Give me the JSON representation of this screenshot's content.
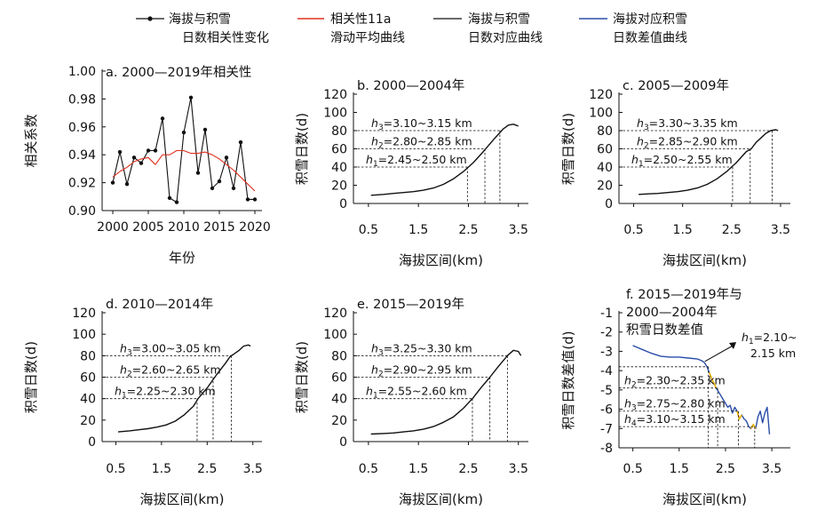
{
  "legend": [
    {
      "line1": "海拔与积雪",
      "line2": "日数相关性变化",
      "color": "#111111",
      "marker": "dot"
    },
    {
      "line1": "相关性11a",
      "line2": "滑动平均曲线",
      "color": "#e0301e",
      "marker": "line"
    },
    {
      "line1": "海拔与积雪",
      "line2": "日数对应曲线",
      "color": "#111111",
      "marker": "line"
    },
    {
      "line1": "海拔对应积雪",
      "line2": "日数差值曲线",
      "color": "#2b4ea8",
      "marker": "line"
    }
  ],
  "colors": {
    "black": "#111111",
    "red": "#e0301e",
    "blue": "#2b4ea8",
    "yellow": "#f0b400"
  },
  "chart_data": [
    {
      "id": "a",
      "type": "line",
      "title": "a. 2000—2019年相关性",
      "xlabel": "年份",
      "ylabel": "相关系数",
      "xlim": [
        1998.5,
        2021
      ],
      "ylim": [
        0.9,
        1.0
      ],
      "xticks": [
        2000,
        2005,
        2010,
        2015,
        2020
      ],
      "yticks": [
        0.9,
        0.92,
        0.94,
        0.96,
        0.98,
        1.0
      ],
      "ytick_labels": [
        "0.90",
        "0.92",
        "0.94",
        "0.96",
        "0.98",
        "1.00"
      ],
      "series": [
        {
          "x": [
            2000,
            2001,
            2002,
            2003,
            2004,
            2005,
            2006,
            2007,
            2008,
            2009,
            2010,
            2011,
            2012,
            2013,
            2014,
            2015,
            2016,
            2017,
            2018,
            2019,
            2020
          ],
          "y": [
            0.92,
            0.942,
            0.919,
            0.938,
            0.934,
            0.943,
            0.943,
            0.966,
            0.909,
            0.906,
            0.956,
            0.981,
            0.927,
            0.958,
            0.916,
            0.921,
            0.938,
            0.916,
            0.949,
            0.908,
            0.908
          ],
          "color": "#111111",
          "marker": true
        },
        {
          "x": [
            2000,
            2001,
            2002,
            2003,
            2004,
            2005,
            2006,
            2007,
            2008,
            2009,
            2010,
            2011,
            2012,
            2013,
            2014,
            2015,
            2016,
            2017,
            2018,
            2019,
            2020
          ],
          "y": [
            0.924,
            0.928,
            0.931,
            0.935,
            0.937,
            0.938,
            0.933,
            0.94,
            0.94,
            0.943,
            0.943,
            0.941,
            0.941,
            0.942,
            0.94,
            0.937,
            0.933,
            0.929,
            0.924,
            0.919,
            0.914
          ],
          "color": "#e0301e",
          "marker": false
        }
      ]
    },
    {
      "id": "b",
      "type": "line",
      "title": "b. 2000—2004年",
      "xlabel": "海拔区间(km)",
      "ylabel": "积雪日数(d)",
      "xlim": [
        0.2,
        3.7
      ],
      "ylim": [
        0,
        120
      ],
      "xticks": [
        0.5,
        1.5,
        2.5,
        3.5
      ],
      "xtick_labels": [
        "0.5",
        "1.5",
        "2.5",
        "3.5"
      ],
      "yticks": [
        0,
        20,
        40,
        60,
        80,
        100,
        120
      ],
      "series": [
        {
          "x": [
            0.55,
            0.8,
            1.0,
            1.2,
            1.4,
            1.6,
            1.8,
            2.0,
            2.2,
            2.4,
            2.5,
            2.6,
            2.8,
            3.0,
            3.1,
            3.2,
            3.3,
            3.4,
            3.5
          ],
          "y": [
            9,
            10,
            11,
            12,
            13,
            14.5,
            17,
            21,
            27,
            35,
            40,
            45,
            57,
            70,
            76,
            82,
            86,
            87,
            85
          ],
          "color": "#111111"
        }
      ],
      "annotations": [
        {
          "sub": "3",
          "text": "=3.10~3.15 km",
          "y": 80,
          "x": 3.13
        },
        {
          "sub": "2",
          "text": "=2.80~2.85 km",
          "y": 60,
          "x": 2.83
        },
        {
          "sub": "1",
          "text": "=2.45~2.50 km",
          "y": 40,
          "x": 2.48
        }
      ]
    },
    {
      "id": "c",
      "type": "line",
      "title": "c. 2005—2009年",
      "xlabel": "海拔区间(km)",
      "ylabel": "积雪日数(d)",
      "xlim": [
        0.2,
        3.7
      ],
      "ylim": [
        0,
        120
      ],
      "xticks": [
        0.5,
        1.5,
        2.5,
        3.5
      ],
      "xtick_labels": [
        "0.5",
        "1.5",
        "2.5",
        "3.5"
      ],
      "yticks": [
        0,
        20,
        40,
        60,
        80,
        100,
        120
      ],
      "series": [
        {
          "x": [
            0.6,
            0.8,
            1.0,
            1.2,
            1.4,
            1.6,
            1.8,
            2.0,
            2.2,
            2.4,
            2.6,
            2.8,
            2.9,
            3.0,
            3.2,
            3.3,
            3.4,
            3.45
          ],
          "y": [
            10,
            10.5,
            11,
            12,
            13,
            14.5,
            17,
            21,
            27,
            35,
            45,
            57,
            60,
            67,
            77,
            80,
            81,
            80
          ],
          "color": "#111111"
        }
      ],
      "annotations": [
        {
          "sub": "3",
          "text": "=3.30~3.35 km",
          "y": 80,
          "x": 3.33
        },
        {
          "sub": "2",
          "text": "=2.85~2.90 km",
          "y": 60,
          "x": 2.88
        },
        {
          "sub": "1",
          "text": "=2.50~2.55 km",
          "y": 40,
          "x": 2.52
        }
      ]
    },
    {
      "id": "d",
      "type": "line",
      "title": "d. 2010—2014年",
      "xlabel": "海拔区间(km)",
      "ylabel": "积雪日数(d)",
      "xlim": [
        0.2,
        3.7
      ],
      "ylim": [
        0,
        120
      ],
      "xticks": [
        0.5,
        1.5,
        2.5,
        3.5
      ],
      "xtick_labels": [
        "0.5",
        "1.5",
        "2.5",
        "3.5"
      ],
      "yticks": [
        0,
        20,
        40,
        60,
        80,
        100,
        120
      ],
      "series": [
        {
          "x": [
            0.55,
            0.8,
            1.0,
            1.2,
            1.4,
            1.6,
            1.8,
            2.0,
            2.2,
            2.3,
            2.5,
            2.7,
            2.9,
            3.0,
            3.1,
            3.2,
            3.3,
            3.4,
            3.45
          ],
          "y": [
            9,
            10,
            11,
            12,
            13.5,
            15.5,
            19,
            25,
            33,
            40,
            50,
            62,
            73,
            79,
            82,
            85,
            89,
            90,
            89
          ],
          "color": "#111111"
        }
      ],
      "annotations": [
        {
          "sub": "3",
          "text": "=3.00~3.05 km",
          "y": 80,
          "x": 3.03
        },
        {
          "sub": "2",
          "text": "=2.60~2.65 km",
          "y": 60,
          "x": 2.63
        },
        {
          "sub": "1",
          "text": "=2.25~2.30 km",
          "y": 40,
          "x": 2.28
        }
      ]
    },
    {
      "id": "e",
      "type": "line",
      "title": "e. 2015—2019年",
      "xlabel": "海拔区间(km)",
      "ylabel": "积雪日数(d)",
      "xlim": [
        0.2,
        3.7
      ],
      "ylim": [
        0,
        120
      ],
      "xticks": [
        0.5,
        1.5,
        2.5,
        3.5
      ],
      "xtick_labels": [
        "0.5",
        "1.5",
        "2.5",
        "3.5"
      ],
      "yticks": [
        0,
        20,
        40,
        60,
        80,
        100,
        120
      ],
      "series": [
        {
          "x": [
            0.55,
            0.8,
            1.0,
            1.2,
            1.4,
            1.6,
            1.8,
            2.0,
            2.2,
            2.4,
            2.58,
            2.75,
            2.93,
            3.1,
            3.28,
            3.4,
            3.5,
            3.55
          ],
          "y": [
            7,
            7.5,
            8,
            9,
            10,
            11.5,
            14,
            18,
            23,
            31,
            40,
            50,
            60,
            70,
            80,
            85,
            84,
            80
          ],
          "color": "#111111"
        }
      ],
      "annotations": [
        {
          "sub": "3",
          "text": "=3.25~3.30 km",
          "y": 80,
          "x": 3.28
        },
        {
          "sub": "2",
          "text": "=2.90~2.95 km",
          "y": 60,
          "x": 2.93
        },
        {
          "sub": "1",
          "text": "=2.55~2.60 km",
          "y": 40,
          "x": 2.58
        }
      ]
    },
    {
      "id": "f",
      "type": "line",
      "title_lines": [
        "f. 2015—2019年与",
        "2000—2004年",
        "积雪日数差值"
      ],
      "xlabel": "海拔区间(km)",
      "ylabel": "积雪日数差值(d)",
      "xlim": [
        0.2,
        3.9
      ],
      "ylim": [
        -8,
        -1
      ],
      "xticks": [
        0.5,
        1.5,
        2.5,
        3.5
      ],
      "xtick_labels": [
        "0.5",
        "1.5",
        "2.5",
        "3.5"
      ],
      "yticks": [
        -8,
        -7,
        -6,
        -5,
        -4,
        -3,
        -2,
        -1
      ],
      "series": [
        {
          "x": [
            0.5,
            0.7,
            0.9,
            1.1,
            1.3,
            1.5,
            1.7,
            1.9,
            2.0,
            2.05,
            2.1,
            2.15,
            2.2,
            2.3,
            2.4,
            2.5,
            2.55,
            2.6,
            2.65,
            2.7,
            2.75,
            2.8,
            2.85,
            2.9,
            2.95,
            3.0,
            3.05,
            3.1,
            3.15,
            3.2,
            3.25,
            3.3,
            3.35,
            3.4,
            3.45
          ],
          "y": [
            -2.7,
            -2.9,
            -3.1,
            -3.25,
            -3.3,
            -3.3,
            -3.35,
            -3.4,
            -3.5,
            -3.6,
            -3.8,
            -4.1,
            -4.4,
            -4.9,
            -5.3,
            -5.7,
            -5.9,
            -5.8,
            -6.2,
            -5.9,
            -6.1,
            -6.5,
            -6.3,
            -6.5,
            -6.6,
            -6.9,
            -7.0,
            -6.8,
            -7.0,
            -6.4,
            -6.1,
            -6.7,
            -6.2,
            -5.9,
            -7.3
          ],
          "color": "#2b4ea8"
        }
      ],
      "yellow_segments": [
        [
          2.15,
          2.35
        ],
        [
          2.75,
          2.85
        ],
        [
          3.05,
          3.15
        ]
      ],
      "annotations": [
        {
          "sub": "1",
          "text": "=2.10~",
          "text2": "2.15 km",
          "y": -3.8,
          "x": 2.13,
          "callout": true
        },
        {
          "sub": "2",
          "text": "=2.30~2.35 km",
          "y": -4.9,
          "x": 2.33
        },
        {
          "sub": "3",
          "text": "=2.75~2.80 km",
          "y": -6.1,
          "x": 2.78
        },
        {
          "sub": "4",
          "text": "=3.10~3.15 km",
          "y": -6.9,
          "x": 3.13
        }
      ]
    }
  ]
}
